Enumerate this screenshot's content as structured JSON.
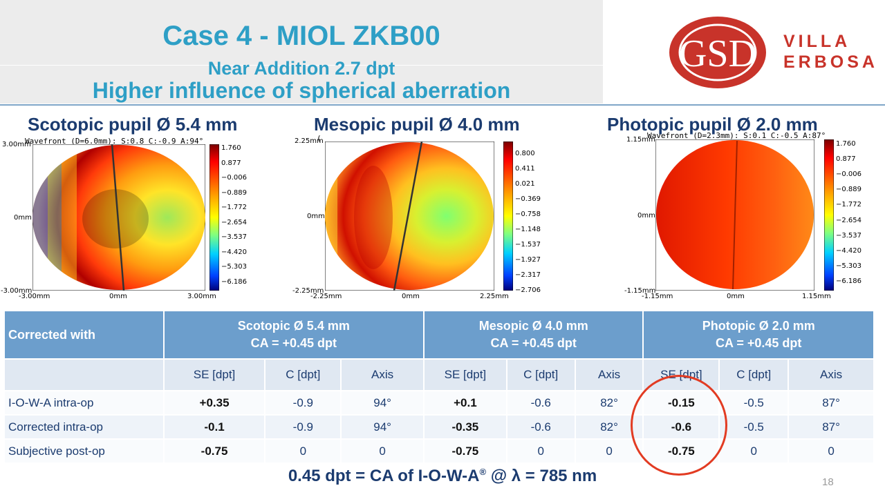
{
  "header": {
    "title": "Case 4 - MIOL ZKB00",
    "subtitle1": "Near Addition 2.7 dpt",
    "subtitle2": "Higher influence of spherical aberration"
  },
  "logo": {
    "initials": "GSD",
    "word1": "VILLA",
    "word2": "ERBOSA"
  },
  "plots": [
    {
      "title": "Scotopic pupil Ø 5.4 mm",
      "wavefront": "Wavefront (D=6.0mm):    S:0.8 C:-0.9 A:94°",
      "axis": {
        "top": "3.00mm",
        "mid": "0mm",
        "bottom": "-3.00mm",
        "left": "-3.00mm",
        "center": "0mm",
        "right": "3.00mm"
      },
      "colorbar": [
        "1.760",
        "0.877",
        "−0.006",
        "−0.889",
        "−1.772",
        "−2.654",
        "−3.537",
        "−4.420",
        "−5.303",
        "−6.186"
      ]
    },
    {
      "title": "Mesopic pupil Ø 4.0 mm",
      "wavefront": "(",
      "axis": {
        "top": "2.25mm",
        "mid": "0mm",
        "bottom": "-2.25mm",
        "left": "-2.25mm",
        "center": "0mm",
        "right": "2.25mm"
      },
      "colorbar": [
        "0.800",
        "0.411",
        "0.021",
        "−0.369",
        "−0.758",
        "−1.148",
        "−1.537",
        "−1.927",
        "−2.317",
        "−2.706"
      ]
    },
    {
      "title": "Photopic pupil Ø 2.0 mm",
      "wavefront": "Wavefront (D=2.3mm):    S:0.1 C:-0.5 A:87°",
      "axis": {
        "top": "1.15mm",
        "mid": "0mm",
        "bottom": "-1.15mm",
        "left": "-1.15mm",
        "center": "0mm",
        "right": "1.15mm"
      },
      "colorbar": [
        "1.760",
        "0.877",
        "−0.006",
        "−0.889",
        "−1.772",
        "−2.654",
        "−3.537",
        "−4.420",
        "−5.303",
        "−6.186"
      ]
    }
  ],
  "table": {
    "corner": "Corrected with",
    "groups": [
      {
        "line1": "Scotopic Ø 5.4 mm",
        "line2": "CA = +0.45 dpt"
      },
      {
        "line1": "Mesopic Ø 4.0 mm",
        "line2": "CA = +0.45 dpt"
      },
      {
        "line1": "Photopic Ø 2.0 mm",
        "line2": "CA = +0.45 dpt"
      }
    ],
    "subheaders": [
      "SE [dpt]",
      "C [dpt]",
      "Axis",
      "SE [dpt]",
      "C [dpt]",
      "Axis",
      "SE [dpt]",
      "C [dpt]",
      "Axis"
    ],
    "rows": [
      {
        "label": "I-O-W-A intra-op",
        "cells": [
          "+0.35",
          "-0.9",
          "94°",
          "+0.1",
          "-0.6",
          "82°",
          "-0.15",
          "-0.5",
          "87°"
        ]
      },
      {
        "label": "Corrected intra-op",
        "cells": [
          "-0.1",
          "-0.9",
          "94°",
          "-0.35",
          "-0.6",
          "82°",
          "-0.6",
          "-0.5",
          "87°"
        ]
      },
      {
        "label": "Subjective post-op",
        "cells": [
          "-0.75",
          "0",
          "0",
          "-0.75",
          "0",
          "0",
          "-0.75",
          "0",
          "0"
        ]
      }
    ]
  },
  "footer": {
    "text_before": "0.45 dpt = CA of  I-O-W-A",
    "reg": "®",
    "text_after": " @ λ = 785 nm"
  },
  "page_number": "18",
  "colors": {
    "title": "#2e9fc6",
    "navy": "#1b3b6f",
    "table_header": "#6c9ecc",
    "logo_red": "#c8332a",
    "highlight_circle": "#e23b22"
  }
}
